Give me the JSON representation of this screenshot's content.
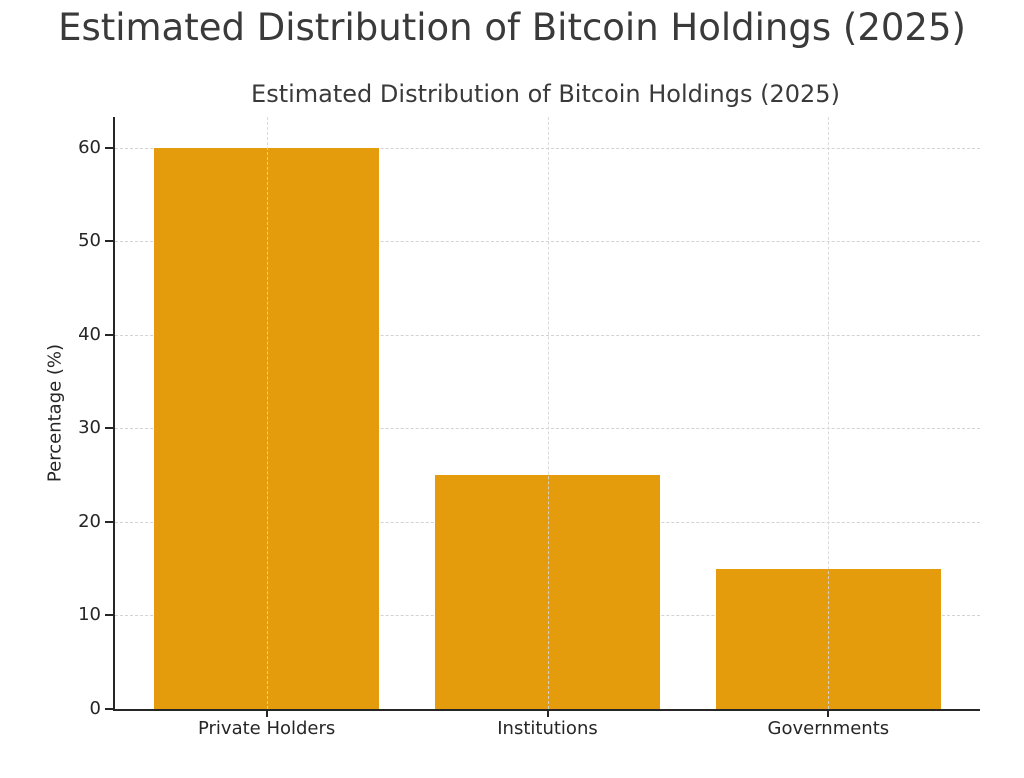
{
  "page_title": "Estimated Distribution of Bitcoin Holdings (2025)",
  "chart_data": {
    "type": "bar",
    "title": "Estimated Distribution of Bitcoin Holdings (2025)",
    "categories": [
      "Private Holders",
      "Institutions",
      "Governments"
    ],
    "values": [
      60,
      25,
      15
    ],
    "xlabel": "",
    "ylabel": "Percentage (%)",
    "ylim": [
      0,
      63.3
    ],
    "yticks": [
      0,
      10,
      20,
      30,
      40,
      50,
      60
    ],
    "grid": "dashed",
    "legend": "none",
    "bar_color": "#E49C0C",
    "axis_color": "#262626",
    "grid_color": "#d3d3d3",
    "title_color": "#3a3a3a"
  }
}
